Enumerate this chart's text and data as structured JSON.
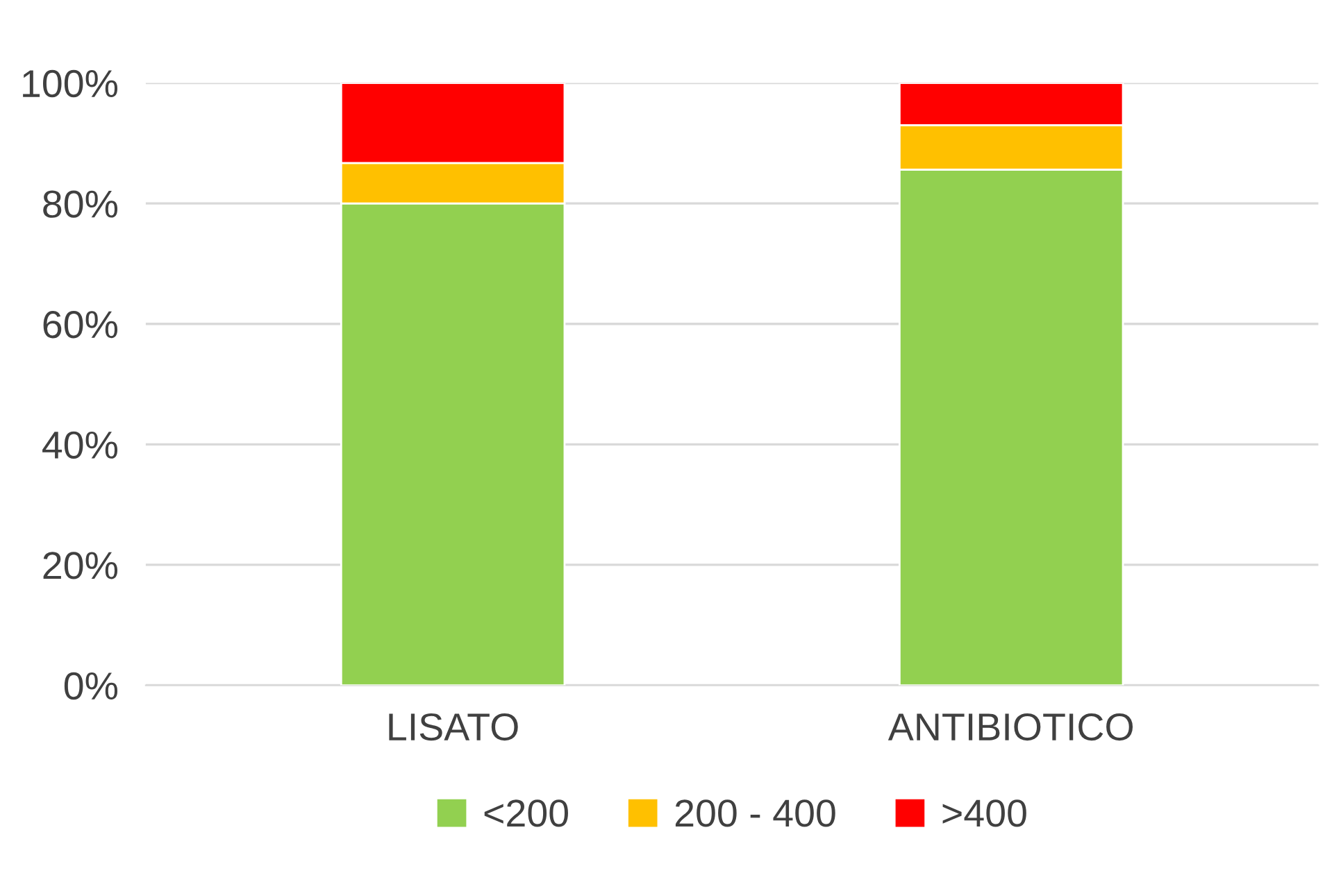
{
  "chart_data": {
    "type": "bar",
    "stacked": true,
    "categories": [
      "LISATO",
      "ANTIBIOTICO"
    ],
    "series": [
      {
        "name": "<200",
        "color": "#92d050",
        "values": [
          80.0,
          85.6
        ]
      },
      {
        "name": "200 - 400",
        "color": "#ffc000",
        "values": [
          6.7,
          7.4
        ]
      },
      {
        "name": ">400",
        "color": "#ff0000",
        "values": [
          13.3,
          7.0
        ]
      }
    ],
    "ylim": [
      0,
      100
    ],
    "yticks": [
      {
        "value": 0,
        "label": "0%"
      },
      {
        "value": 20,
        "label": "20%"
      },
      {
        "value": 40,
        "label": "40%"
      },
      {
        "value": 60,
        "label": "60%"
      },
      {
        "value": 80,
        "label": "80%"
      },
      {
        "value": 100,
        "label": "100%"
      }
    ],
    "grid": "y",
    "legend": "bottom"
  }
}
